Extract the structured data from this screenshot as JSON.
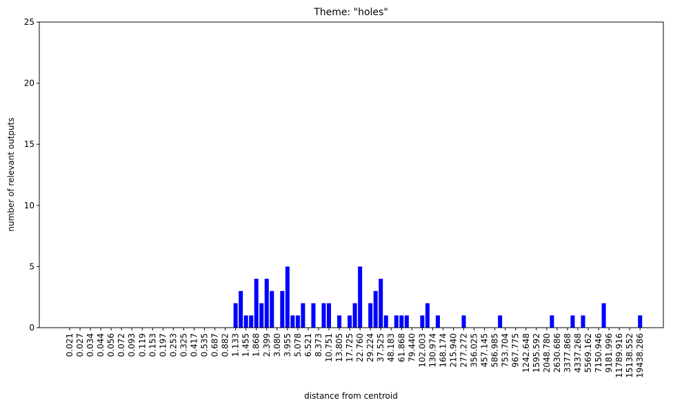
{
  "chart_data": {
    "type": "bar",
    "title": "Theme: \"holes\"",
    "x_label": "distance from centroid",
    "y_label": "number of relevant outputs",
    "color": "#0000ff",
    "ylim": [
      0,
      25
    ],
    "yticks": [
      0,
      5,
      10,
      15,
      20,
      25
    ],
    "categories": [
      "0.021",
      null,
      "0.027",
      null,
      "0.034",
      null,
      "0.044",
      null,
      "0.056",
      null,
      "0.072",
      null,
      "0.093",
      null,
      "0.119",
      null,
      "0.153",
      null,
      "0.197",
      null,
      "0.253",
      null,
      "0.325",
      null,
      "0.417",
      null,
      "0.535",
      null,
      "0.687",
      null,
      "0.882",
      null,
      "1.133",
      null,
      "1.455",
      null,
      "1.868",
      null,
      "2.399",
      null,
      "3.080",
      null,
      "3.955",
      null,
      "5.078",
      null,
      "6.521",
      null,
      "8.373",
      null,
      "10.751",
      null,
      "13.805",
      null,
      "17.725",
      null,
      "22.760",
      null,
      "29.224",
      null,
      "37.525",
      null,
      "48.183",
      null,
      "61.868",
      null,
      "79.440",
      null,
      "102.003",
      null,
      "130.974",
      null,
      "168.174",
      null,
      "215.940",
      null,
      "277.272",
      null,
      "356.025",
      null,
      "457.145",
      null,
      "586.985",
      null,
      "753.704",
      null,
      "967.775",
      null,
      "1242.648",
      null,
      "1595.592",
      null,
      "2048.780",
      null,
      "2630.686",
      null,
      "3377.868",
      null,
      "4337.268",
      null,
      "5569.162",
      null,
      "7150.946",
      null,
      "9181.996",
      null,
      "11789.916",
      null,
      "15138.552",
      null,
      "19438.286"
    ],
    "values": [
      0,
      0,
      0,
      0,
      0,
      0,
      0,
      0,
      0,
      0,
      0,
      0,
      0,
      0,
      0,
      0,
      0,
      0,
      0,
      0,
      0,
      0,
      0,
      0,
      0,
      0,
      0,
      0,
      0,
      0,
      0,
      0,
      2,
      3,
      1,
      1,
      4,
      2,
      4,
      3,
      0,
      3,
      5,
      1,
      1,
      2,
      0,
      2,
      0,
      2,
      2,
      0,
      1,
      0,
      1,
      2,
      5,
      0,
      2,
      3,
      4,
      1,
      0,
      1,
      1,
      1,
      0,
      0,
      1,
      2,
      0,
      1,
      0,
      0,
      0,
      0,
      1,
      0,
      0,
      0,
      0,
      0,
      0,
      1,
      0,
      0,
      0,
      0,
      0,
      0,
      0,
      0,
      0,
      1,
      0,
      0,
      0,
      1,
      0,
      1,
      0,
      0,
      0,
      2,
      0,
      0,
      0,
      0,
      0,
      0,
      1
    ]
  }
}
